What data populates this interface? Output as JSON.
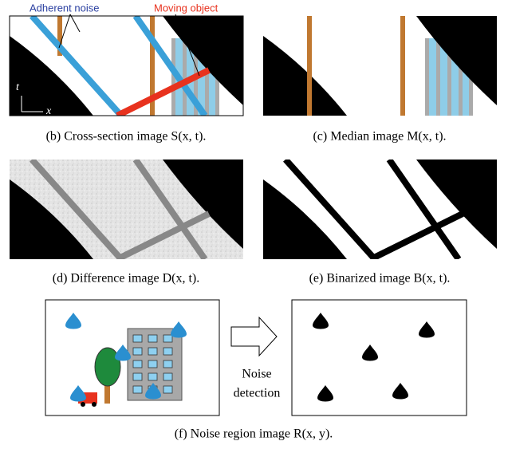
{
  "labels": {
    "adherent_noise": "Adherent noise",
    "moving_object": "Moving object",
    "t_axis": "t",
    "x_axis": "x"
  },
  "panels": [
    {
      "caption": "(b) Cross-section image S(x, t)."
    },
    {
      "caption": "(c) Median image M(x, t)."
    },
    {
      "caption": "(d) Difference image D(x, t)."
    },
    {
      "caption": "(e) Binarized image B(x, t)."
    }
  ],
  "noise_detection": [
    "Noise",
    "detection"
  ],
  "caption_f": "(f) Noise region image R(x, y)."
}
